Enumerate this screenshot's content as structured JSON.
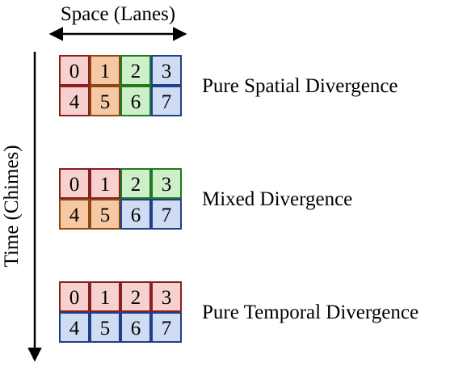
{
  "space_axis": {
    "label": "Space (Lanes)"
  },
  "time_axis": {
    "label": "Time (Chimes)"
  },
  "colors": {
    "red": {
      "fill": "#f7d0d0",
      "stroke": "#8a1f1f"
    },
    "orange": {
      "fill": "#f6c9a4",
      "stroke": "#8a4a12"
    },
    "green": {
      "fill": "#cdf0c8",
      "stroke": "#1f7a1f"
    },
    "blue": {
      "fill": "#cfdcf4",
      "stroke": "#1f3f8a"
    }
  },
  "grids": [
    {
      "label": "Pure Spatial Divergence",
      "cells": [
        {
          "text": "0",
          "color": "red"
        },
        {
          "text": "1",
          "color": "orange"
        },
        {
          "text": "2",
          "color": "green"
        },
        {
          "text": "3",
          "color": "blue"
        },
        {
          "text": "4",
          "color": "red"
        },
        {
          "text": "5",
          "color": "orange"
        },
        {
          "text": "6",
          "color": "green"
        },
        {
          "text": "7",
          "color": "blue"
        }
      ]
    },
    {
      "label": "Mixed Divergence",
      "cells": [
        {
          "text": "0",
          "color": "red"
        },
        {
          "text": "1",
          "color": "red"
        },
        {
          "text": "2",
          "color": "green"
        },
        {
          "text": "3",
          "color": "green"
        },
        {
          "text": "4",
          "color": "orange"
        },
        {
          "text": "5",
          "color": "orange"
        },
        {
          "text": "6",
          "color": "blue"
        },
        {
          "text": "7",
          "color": "blue"
        }
      ]
    },
    {
      "label": "Pure Temporal Divergence",
      "cells": [
        {
          "text": "0",
          "color": "red"
        },
        {
          "text": "1",
          "color": "red"
        },
        {
          "text": "2",
          "color": "red"
        },
        {
          "text": "3",
          "color": "red"
        },
        {
          "text": "4",
          "color": "blue"
        },
        {
          "text": "5",
          "color": "blue"
        },
        {
          "text": "6",
          "color": "blue"
        },
        {
          "text": "7",
          "color": "blue"
        }
      ]
    }
  ]
}
